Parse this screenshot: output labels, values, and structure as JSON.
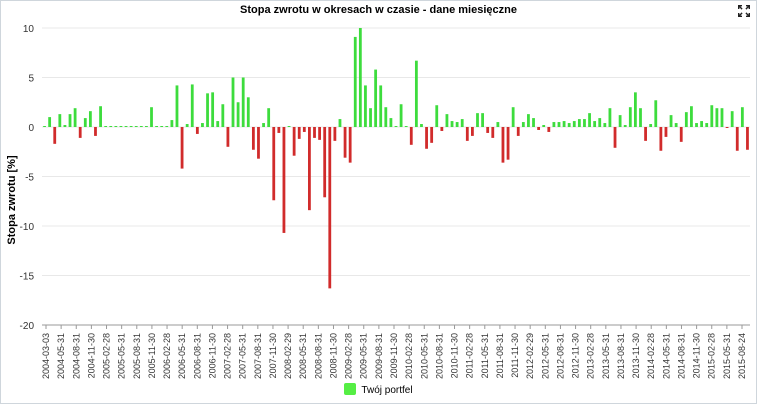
{
  "colors": {
    "positive": "#3ddc3d",
    "negative": "#d12b2b",
    "grid": "#e8e8e8",
    "axis": "#999999",
    "text": "#333333"
  },
  "legend": {
    "label": "Twój portfel",
    "color": "#55ee44"
  },
  "icons": {
    "expand": "expand-icon"
  },
  "chart_data": {
    "type": "bar",
    "title": "Stopa zwrotu w okresach w czasie - dane miesięczne",
    "xlabel": "",
    "ylabel": "Stopa zwrotu [%]",
    "ylim": [
      -20,
      10
    ],
    "yticks": [
      10,
      5,
      0,
      -5,
      -10,
      -15,
      -20
    ],
    "grid": "horizontal",
    "legend_position": "bottom",
    "xtick_labels": [
      "2004-03-03",
      "2004-05-31",
      "2004-08-31",
      "2004-11-30",
      "2005-02-28",
      "2005-05-31",
      "2005-08-31",
      "2005-11-30",
      "2006-02-28",
      "2006-05-31",
      "2006-08-31",
      "2006-11-30",
      "2007-02-28",
      "2007-05-31",
      "2007-08-31",
      "2007-11-30",
      "2008-02-29",
      "2008-05-31",
      "2008-08-31",
      "2008-11-30",
      "2009-02-28",
      "2009-05-31",
      "2009-08-31",
      "2009-11-30",
      "2010-02-28",
      "2010-05-31",
      "2010-08-31",
      "2010-11-30",
      "2011-02-28",
      "2011-05-31",
      "2011-08-31",
      "2011-11-30",
      "2012-02-29",
      "2012-05-31",
      "2012-08-31",
      "2012-11-30",
      "2013-02-28",
      "2013-05-31",
      "2013-08-31",
      "2013-11-30",
      "2014-02-28",
      "2014-05-31",
      "2014-08-31",
      "2014-11-30",
      "2015-02-28",
      "2015-05-31",
      "2015-08-24"
    ],
    "series": [
      {
        "name": "Twój portfel",
        "values": [
          0.1,
          1.0,
          -1.7,
          1.3,
          0.2,
          1.3,
          1.9,
          -1.1,
          0.9,
          1.6,
          -0.9,
          2.1,
          0.1,
          0.1,
          0.1,
          0.1,
          0.1,
          0.1,
          0.1,
          0.1,
          0.1,
          2.0,
          0.1,
          0.1,
          0.1,
          0.7,
          4.2,
          -4.2,
          0.3,
          4.3,
          -0.7,
          0.4,
          3.4,
          3.5,
          0.6,
          2.3,
          -2.0,
          5.0,
          2.5,
          5.0,
          3.0,
          -2.3,
          -3.2,
          0.4,
          1.9,
          -7.4,
          -0.6,
          -10.7,
          0.1,
          -2.9,
          -1.2,
          -0.5,
          -8.4,
          -1.1,
          -1.3,
          -7.1,
          -16.3,
          -1.4,
          0.8,
          -3.1,
          -3.6,
          9.1,
          10.0,
          4.2,
          1.9,
          5.8,
          4.2,
          2.0,
          0.9,
          0.1,
          2.3,
          0.1,
          -1.8,
          6.7,
          0.3,
          -2.2,
          -1.6,
          2.2,
          -0.4,
          1.3,
          0.6,
          0.5,
          0.8,
          -1.4,
          -0.9,
          1.4,
          1.4,
          -0.6,
          -1.1,
          0.5,
          -3.6,
          -3.3,
          2.0,
          -0.9,
          0.5,
          1.3,
          0.9,
          -0.3,
          0.2,
          -0.5,
          0.5,
          0.5,
          0.6,
          0.4,
          0.6,
          0.8,
          0.8,
          1.4,
          0.6,
          0.9,
          0.4,
          1.9,
          -2.1,
          1.2,
          0.2,
          2.0,
          3.5,
          1.9,
          -1.4,
          0.3,
          2.7,
          -2.4,
          -1.0,
          1.2,
          0.4,
          -1.5,
          1.5,
          2.1,
          0.4,
          0.6,
          0.4,
          2.2,
          1.9,
          1.9,
          -0.1,
          1.6,
          -2.4,
          2.0,
          -2.3
        ]
      }
    ]
  }
}
